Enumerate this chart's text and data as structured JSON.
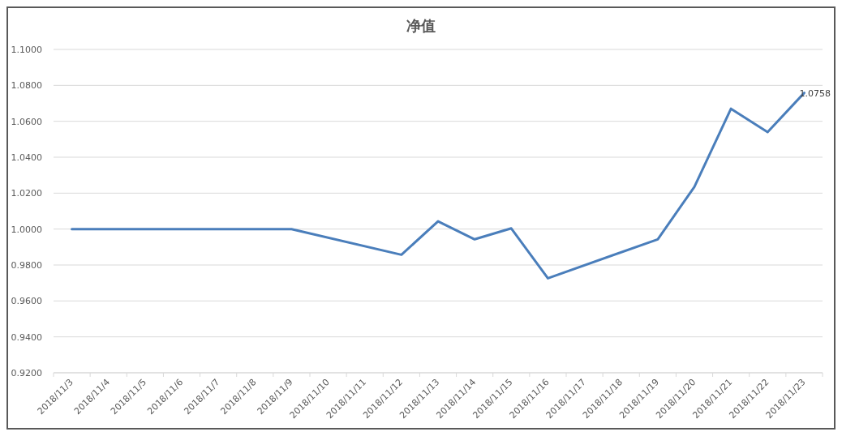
{
  "chart_data": {
    "type": "line",
    "title": "净值",
    "x": [
      "2018-11-03",
      "2018-11-04",
      "2018-11-05",
      "2018-11-06",
      "2018-11-07",
      "2018-11-08",
      "2018-11-09",
      "2018-11-12",
      "2018-11-13",
      "2018-11-14",
      "2018-11-15",
      "2018-11-16",
      "2018-11-19",
      "2018-11-20",
      "2018-11-21",
      "2018-11-22",
      "2018-11-23"
    ],
    "series": [
      {
        "color": "#4a7ebb",
        "values": [
          1.0,
          1.0,
          1.0,
          1.0,
          1.0,
          1.0,
          1.0,
          0.9857,
          1.0043,
          0.9943,
          1.0004,
          0.9726,
          0.9943,
          1.0235,
          1.067,
          1.054,
          1.0758
        ],
        "value_labels": [
          null,
          null,
          null,
          null,
          null,
          null,
          null,
          null,
          null,
          null,
          null,
          null,
          null,
          null,
          null,
          null,
          "1.0758"
        ]
      }
    ],
    "xlim": [
      "2018-11-02T12:00",
      "2018-11-23T12:00"
    ],
    "xticks": [
      {
        "value": "2018-11-03",
        "label": "2018/11/3"
      },
      {
        "value": "2018-11-04",
        "label": "2018/11/4"
      },
      {
        "value": "2018-11-05",
        "label": "2018/11/5"
      },
      {
        "value": "2018-11-06",
        "label": "2018/11/6"
      },
      {
        "value": "2018-11-07",
        "label": "2018/11/7"
      },
      {
        "value": "2018-11-08",
        "label": "2018/11/8"
      },
      {
        "value": "2018-11-09",
        "label": "2018/11/9"
      },
      {
        "value": "2018-11-10",
        "label": "2018/11/10"
      },
      {
        "value": "2018-11-11",
        "label": "2018/11/11"
      },
      {
        "value": "2018-11-12",
        "label": "2018/11/12"
      },
      {
        "value": "2018-11-13",
        "label": "2018/11/13"
      },
      {
        "value": "2018-11-14",
        "label": "2018/11/14"
      },
      {
        "value": "2018-11-15",
        "label": "2018/11/15"
      },
      {
        "value": "2018-11-16",
        "label": "2018/11/16"
      },
      {
        "value": "2018-11-17",
        "label": "2018/11/17"
      },
      {
        "value": "2018-11-18",
        "label": "2018/11/18"
      },
      {
        "value": "2018-11-19",
        "label": "2018/11/19"
      },
      {
        "value": "2018-11-20",
        "label": "2018/11/20"
      },
      {
        "value": "2018-11-21",
        "label": "2018/11/21"
      },
      {
        "value": "2018-11-22",
        "label": "2018/11/22"
      },
      {
        "value": "2018-11-23",
        "label": "2018/11/23"
      }
    ],
    "ylim": [
      0.92,
      1.1
    ],
    "yticks": [
      {
        "value": 0.92,
        "label": "0.9200"
      },
      {
        "value": 0.94,
        "label": "0.9400"
      },
      {
        "value": 0.96,
        "label": "0.9600"
      },
      {
        "value": 0.98,
        "label": "0.9800"
      },
      {
        "value": 1.0,
        "label": "1.0000"
      },
      {
        "value": 1.02,
        "label": "1.0200"
      },
      {
        "value": 1.04,
        "label": "1.0400"
      },
      {
        "value": 1.06,
        "label": "1.0600"
      },
      {
        "value": 1.08,
        "label": "1.0800"
      },
      {
        "value": 1.1,
        "label": "1.1000"
      }
    ],
    "grid": "y",
    "marker": "none",
    "line_style": "solid"
  }
}
